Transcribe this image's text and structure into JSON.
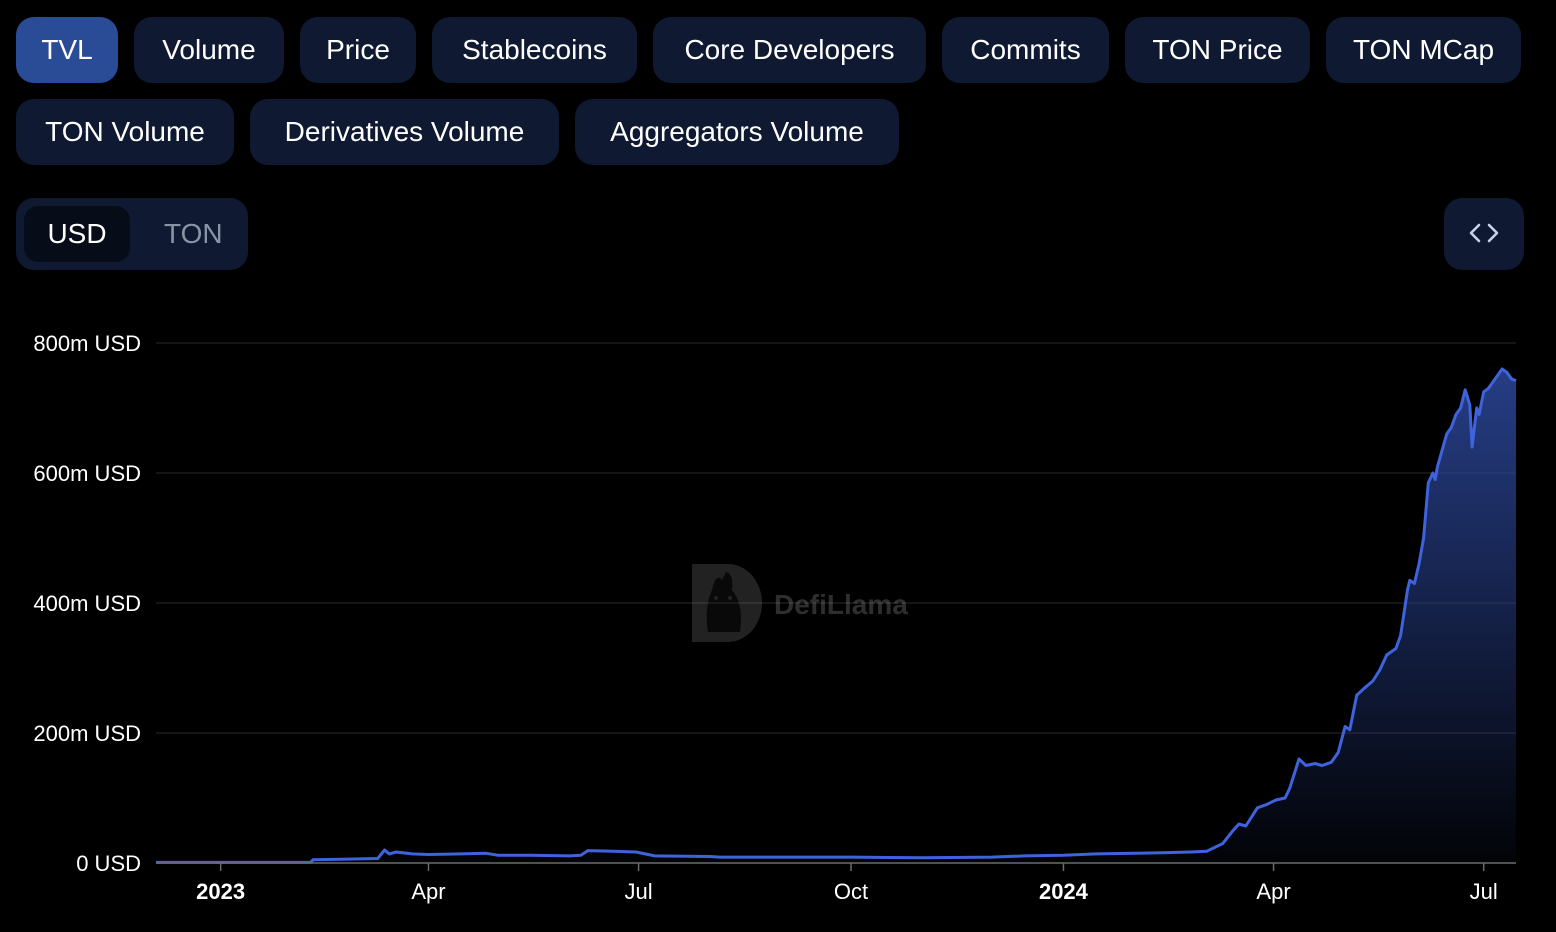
{
  "tabs": [
    {
      "label": "TVL",
      "active": true
    },
    {
      "label": "Volume"
    },
    {
      "label": "Price"
    },
    {
      "label": "Stablecoins"
    },
    {
      "label": "Core Developers"
    },
    {
      "label": "Commits"
    },
    {
      "label": "TON Price"
    },
    {
      "label": "TON MCap"
    },
    {
      "label": "TON Volume"
    },
    {
      "label": "Derivatives Volume"
    },
    {
      "label": "Aggregators Volume"
    }
  ],
  "currency_toggle": {
    "selected": "USD",
    "other": "TON"
  },
  "embed_icon": "code-brackets-icon",
  "watermark": {
    "text": "DefiLlama",
    "icon": "llama-logo-icon"
  },
  "colors": {
    "line": "#3f63dd",
    "fill_top": "#2a4494",
    "grid": "#222222",
    "tab_bg": "#0f1a32",
    "tab_active": "#2a4c97"
  },
  "chart_data": {
    "type": "area",
    "title": "",
    "xlabel": "",
    "ylabel": "",
    "ylim": [
      0,
      800
    ],
    "y_unit": "m USD",
    "grid": true,
    "yticks": [
      "0 USD",
      "200m USD",
      "400m USD",
      "600m USD",
      "800m USD"
    ],
    "xticks": [
      {
        "label": "2023",
        "date": "2023-01-01",
        "bold": true
      },
      {
        "label": "Apr",
        "date": "2023-04-01"
      },
      {
        "label": "Jul",
        "date": "2023-07-01"
      },
      {
        "label": "Oct",
        "date": "2023-10-01"
      },
      {
        "label": "2024",
        "date": "2024-01-01",
        "bold": true
      },
      {
        "label": "Apr",
        "date": "2024-04-01"
      },
      {
        "label": "Jul",
        "date": "2024-07-01"
      }
    ],
    "x_range": [
      "2022-12-04",
      "2024-07-15"
    ],
    "series": [
      {
        "points": [
          [
            "2022-12-04",
            1
          ],
          [
            "2023-01-01",
            1
          ],
          [
            "2023-02-01",
            1
          ],
          [
            "2023-02-09",
            1
          ],
          [
            "2023-02-10",
            5
          ],
          [
            "2023-02-25",
            6
          ],
          [
            "2023-03-10",
            7
          ],
          [
            "2023-03-13",
            20
          ],
          [
            "2023-03-15",
            14
          ],
          [
            "2023-03-18",
            17
          ],
          [
            "2023-03-25",
            14
          ],
          [
            "2023-04-01",
            13
          ],
          [
            "2023-04-15",
            14
          ],
          [
            "2023-04-26",
            15
          ],
          [
            "2023-05-01",
            12
          ],
          [
            "2023-05-15",
            12
          ],
          [
            "2023-06-01",
            11
          ],
          [
            "2023-06-06",
            12
          ],
          [
            "2023-06-09",
            19
          ],
          [
            "2023-06-20",
            18
          ],
          [
            "2023-06-30",
            17
          ],
          [
            "2023-07-08",
            11
          ],
          [
            "2023-08-01",
            10
          ],
          [
            "2023-08-05",
            9
          ],
          [
            "2023-09-01",
            9
          ],
          [
            "2023-10-01",
            9
          ],
          [
            "2023-11-01",
            8
          ],
          [
            "2023-12-01",
            9
          ],
          [
            "2023-12-15",
            11
          ],
          [
            "2024-01-01",
            12
          ],
          [
            "2024-01-15",
            14
          ],
          [
            "2024-02-01",
            15
          ],
          [
            "2024-02-15",
            16
          ],
          [
            "2024-02-25",
            17
          ],
          [
            "2024-03-03",
            18
          ],
          [
            "2024-03-10",
            30
          ],
          [
            "2024-03-14",
            48
          ],
          [
            "2024-03-17",
            60
          ],
          [
            "2024-03-20",
            57
          ],
          [
            "2024-03-25",
            85
          ],
          [
            "2024-03-29",
            90
          ],
          [
            "2024-04-02",
            97
          ],
          [
            "2024-04-06",
            100
          ],
          [
            "2024-04-08",
            115
          ],
          [
            "2024-04-12",
            160
          ],
          [
            "2024-04-15",
            150
          ],
          [
            "2024-04-19",
            153
          ],
          [
            "2024-04-22",
            150
          ],
          [
            "2024-04-26",
            155
          ],
          [
            "2024-04-29",
            170
          ],
          [
            "2024-05-02",
            210
          ],
          [
            "2024-05-04",
            205
          ],
          [
            "2024-05-07",
            258
          ],
          [
            "2024-05-10",
            268
          ],
          [
            "2024-05-14",
            280
          ],
          [
            "2024-05-17",
            297
          ],
          [
            "2024-05-20",
            320
          ],
          [
            "2024-05-24",
            330
          ],
          [
            "2024-05-26",
            350
          ],
          [
            "2024-05-29",
            420
          ],
          [
            "2024-05-30",
            435
          ],
          [
            "2024-06-01",
            430
          ],
          [
            "2024-06-03",
            460
          ],
          [
            "2024-06-05",
            500
          ],
          [
            "2024-06-07",
            585
          ],
          [
            "2024-06-09",
            600
          ],
          [
            "2024-06-10",
            590
          ],
          [
            "2024-06-11",
            610
          ],
          [
            "2024-06-13",
            635
          ],
          [
            "2024-06-15",
            660
          ],
          [
            "2024-06-17",
            670
          ],
          [
            "2024-06-19",
            690
          ],
          [
            "2024-06-21",
            700
          ],
          [
            "2024-06-23",
            728
          ],
          [
            "2024-06-25",
            705
          ],
          [
            "2024-06-26",
            640
          ],
          [
            "2024-06-28",
            700
          ],
          [
            "2024-06-29",
            690
          ],
          [
            "2024-07-01",
            725
          ],
          [
            "2024-07-03",
            730
          ],
          [
            "2024-07-05",
            740
          ],
          [
            "2024-07-07",
            750
          ],
          [
            "2024-07-09",
            760
          ],
          [
            "2024-07-11",
            755
          ],
          [
            "2024-07-13",
            745
          ],
          [
            "2024-07-15",
            742
          ]
        ]
      }
    ]
  }
}
